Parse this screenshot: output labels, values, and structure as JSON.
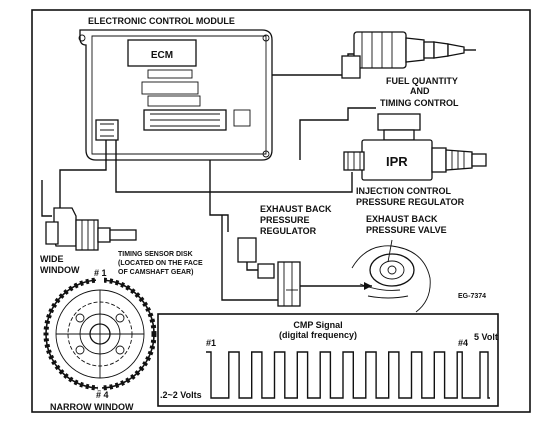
{
  "labels": {
    "module": "ELECTRONIC  CONTROL  MODULE",
    "ecm": "ECM",
    "fuel_line1": "FUEL  QUANTITY",
    "fuel_line2": "AND",
    "fuel_line3": "TIMING  CONTROL",
    "ipr": "IPR",
    "ipr_line1": "INJECTION  CONTROL",
    "ipr_line2": "PRESSURE   REGULATOR",
    "ebpr_line1": "EXHAUST  BACK",
    "ebpr_line2": "PRESSURE",
    "ebpr_line3": "REGULATOR",
    "ebpv_line1": "EXHAUST  BACK",
    "ebpv_line2": "PRESSURE  VALVE",
    "wide_line1": "WIDE",
    "wide_line2": "WINDOW",
    "disk_line1": "TIMING SENSOR DISK",
    "disk_line2": "(LOCATED ON THE FACE",
    "disk_line3": "OF CAMSHAFT GEAR)",
    "num1_disk": "# 1",
    "num4_disk": "# 4",
    "narrow": "NARROW WINDOW",
    "figure_id": "EG-7374",
    "cmp_line1": "CMP Signal",
    "cmp_line2": "(digital frequency)",
    "num1_signal": "#1",
    "num4_signal": "#4",
    "volt5": "5 Volt",
    "volt_low": ".2~2 Volts"
  },
  "signal": {
    "pulses": 12
  }
}
